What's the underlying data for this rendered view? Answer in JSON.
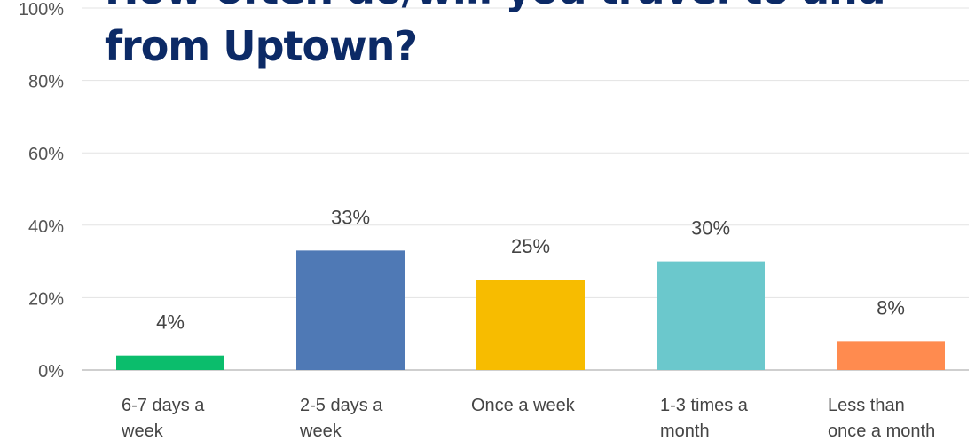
{
  "chart_data": {
    "type": "bar",
    "title_lines": [
      "How often do/will you travel to and",
      "from Uptown?"
    ],
    "title_color": "#0c2a66",
    "categories": [
      [
        "6-7 days a",
        "week"
      ],
      [
        "2-5 days a",
        "week"
      ],
      [
        "Once a week"
      ],
      [
        "1-3 times a",
        "month"
      ],
      [
        "Less than",
        "once a month"
      ]
    ],
    "values": [
      4,
      33,
      25,
      30,
      8
    ],
    "value_labels": [
      "4%",
      "33%",
      "25%",
      "30%",
      "8%"
    ],
    "colors": [
      "#0bbd6c",
      "#4f79b5",
      "#f7bc00",
      "#6bc8cc",
      "#ff8b4f"
    ],
    "ylim": [
      0,
      100
    ],
    "yticks": [
      "0%",
      "20%",
      "40%",
      "60%",
      "80%",
      "100%"
    ],
    "grid": true,
    "legend": "none"
  }
}
